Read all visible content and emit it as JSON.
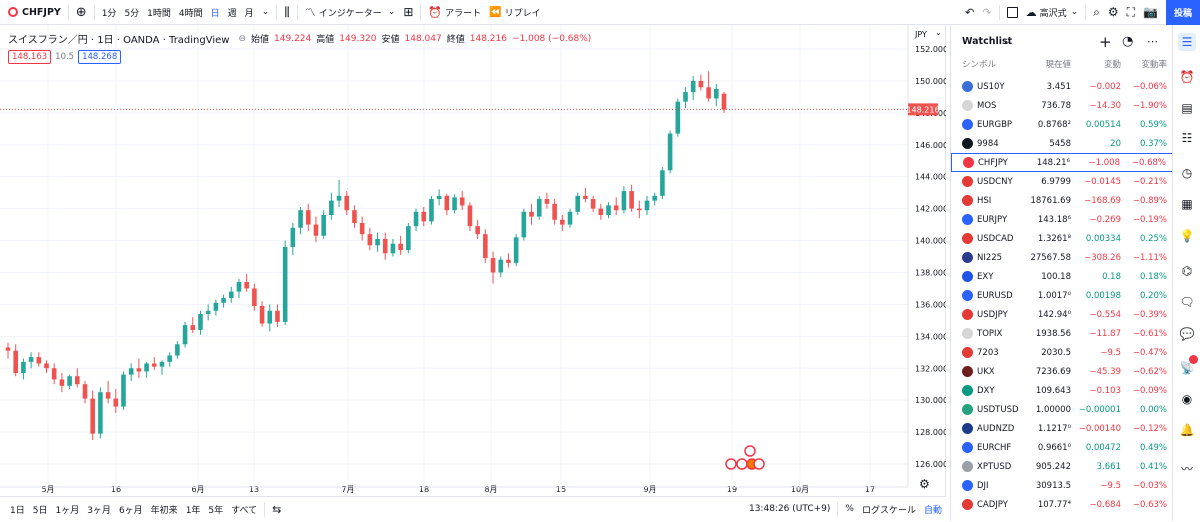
{
  "toolbar": {
    "symbol": "CHFJPY",
    "intervals": [
      "1分",
      "5分",
      "1時間",
      "4時間",
      "日",
      "週",
      "月"
    ],
    "indicators": "インジケーター",
    "alert": "アラート",
    "replay": "リプレイ",
    "autosave": "高沢式",
    "publish": "投稿"
  },
  "legend": {
    "name": "スイスフラン／円 · 1日 · OANDA · TradingView",
    "o_label": "始値",
    "o": "149.224",
    "h_label": "高値",
    "h": "149.320",
    "l_label": "安値",
    "l": "148.047",
    "c_label": "終値",
    "c": "148.216",
    "chg": "−1.008 (−0.68%)",
    "bid": "148.163",
    "spread": "10.5",
    "ask": "148.268"
  },
  "price_axis": {
    "currency": "JPY",
    "ticks": [
      "152.000",
      "150.000",
      "148.000",
      "146.000",
      "144.000",
      "142.000",
      "140.000",
      "138.000",
      "136.000",
      "134.000",
      "132.000",
      "130.000",
      "128.000",
      "126.000"
    ],
    "last": "148.216"
  },
  "time_axis": [
    "5月",
    "16",
    "6月",
    "13",
    "7月",
    "18",
    "8月",
    "15",
    "9月",
    "19",
    "10月",
    "17"
  ],
  "bottom": {
    "ranges": [
      "1日",
      "5日",
      "1ヶ月",
      "3ヶ月",
      "6ヶ月",
      "年初来",
      "1年",
      "5年",
      "すべて"
    ],
    "time": "13:48:26 (UTC+9)",
    "pct": "%",
    "log": "ログスケール",
    "auto": "自動"
  },
  "watchlist": {
    "title": "Watchlist",
    "cols": [
      "シンボル",
      "現在値",
      "変動",
      "変動率"
    ],
    "rows": [
      {
        "sym": "US10Y",
        "last": "3.451",
        "chg": "−0.002",
        "chp": "−0.06%",
        "dir": "dn",
        "color": "#3a6fd8"
      },
      {
        "sym": "MOS",
        "last": "736.78",
        "chg": "−14.30",
        "chp": "−1.90%",
        "dir": "dn",
        "color": "#d6d6d6"
      },
      {
        "sym": "EURGBP",
        "last": "0.8768²",
        "chg": "0.00514",
        "chp": "0.59%",
        "dir": "up",
        "color": "#2962ff"
      },
      {
        "sym": "9984",
        "last": "5458",
        "chg": "20",
        "chp": "0.37%",
        "dir": "up",
        "color": "#131722"
      },
      {
        "sym": "CHFJPY",
        "last": "148.21⁶",
        "chg": "−1.008",
        "chp": "−0.68%",
        "dir": "dn",
        "color": "#f23645",
        "sel": true
      },
      {
        "sym": "USDCNY",
        "last": "6.9799",
        "chg": "−0.0145",
        "chp": "−0.21%",
        "dir": "dn",
        "color": "#e53935"
      },
      {
        "sym": "HSI",
        "last": "18761.69",
        "chg": "−168.69",
        "chp": "−0.89%",
        "dir": "dn",
        "color": "#e53935"
      },
      {
        "sym": "EURJPY",
        "last": "143.18⁶",
        "chg": "−0.269",
        "chp": "−0.19%",
        "dir": "dn",
        "color": "#2962ff"
      },
      {
        "sym": "USDCAD",
        "last": "1.3261⁸",
        "chg": "0.00334",
        "chp": "0.25%",
        "dir": "up",
        "color": "#e53935"
      },
      {
        "sym": "NI225",
        "last": "27567.58",
        "chg": "−308.26",
        "chp": "−1.11%",
        "dir": "dn",
        "color": "#2a3a8c"
      },
      {
        "sym": "EXY",
        "last": "100.18",
        "chg": "0.18",
        "chp": "0.18%",
        "dir": "up",
        "color": "#1e53e5"
      },
      {
        "sym": "EURUSD",
        "last": "1.0017⁰",
        "chg": "0.00198",
        "chp": "0.20%",
        "dir": "up",
        "color": "#2962ff"
      },
      {
        "sym": "USDJPY",
        "last": "142.94⁰",
        "chg": "−0.554",
        "chp": "−0.39%",
        "dir": "dn",
        "color": "#e53935"
      },
      {
        "sym": "TOPIX",
        "last": "1938.56",
        "chg": "−11.87",
        "chp": "−0.61%",
        "dir": "dn",
        "color": "#d6d6d6"
      },
      {
        "sym": "7203",
        "last": "2030.5",
        "chg": "−9.5",
        "chp": "−0.47%",
        "dir": "dn",
        "color": "#e53935"
      },
      {
        "sym": "UKX",
        "last": "7236.69",
        "chg": "−45.39",
        "chp": "−0.62%",
        "dir": "dn",
        "color": "#6d1f1f"
      },
      {
        "sym": "DXY",
        "last": "109.643",
        "chg": "−0.103",
        "chp": "−0.09%",
        "dir": "dn",
        "color": "#089981"
      },
      {
        "sym": "USDTUSD",
        "last": "1.00000",
        "chg": "−0.00001",
        "chp": "0.00%",
        "dir": "up",
        "color": "#26a17b"
      },
      {
        "sym": "AUDNZD",
        "last": "1.1217⁰",
        "chg": "−0.00140",
        "chp": "−0.12%",
        "dir": "dn",
        "color": "#1e3a8a"
      },
      {
        "sym": "EURCHF",
        "last": "0.9661⁰",
        "chg": "0.00472",
        "chp": "0.49%",
        "dir": "up",
        "color": "#2962ff"
      },
      {
        "sym": "XPTUSD",
        "last": "905.242",
        "chg": "3.661",
        "chp": "0.41%",
        "dir": "up",
        "color": "#9aa0a6"
      },
      {
        "sym": "DJI",
        "last": "30913.5",
        "chg": "−9.5",
        "chp": "−0.03%",
        "dir": "dn",
        "color": "#2962ff"
      },
      {
        "sym": "CADJPY",
        "last": "107.77⁴",
        "chg": "−0.684",
        "chp": "−0.63%",
        "dir": "dn",
        "color": "#e53935"
      }
    ]
  },
  "chart_data": {
    "type": "candlestick",
    "ylim": [
      125,
      153
    ],
    "ohlc": [
      [
        133.3,
        133.6,
        132.6,
        133.1
      ],
      [
        133.1,
        133.5,
        131.5,
        131.7
      ],
      [
        131.7,
        132.6,
        131.3,
        132.4
      ],
      [
        132.4,
        133.0,
        132.0,
        132.7
      ],
      [
        132.7,
        133.0,
        132.1,
        132.3
      ],
      [
        132.3,
        132.5,
        131.7,
        132.0
      ],
      [
        132.0,
        132.3,
        131.0,
        131.3
      ],
      [
        131.3,
        131.7,
        130.5,
        130.9
      ],
      [
        130.9,
        131.6,
        130.7,
        131.5
      ],
      [
        131.5,
        132.0,
        130.8,
        131.0
      ],
      [
        131.0,
        131.2,
        129.8,
        130.1
      ],
      [
        130.1,
        130.6,
        127.5,
        127.9
      ],
      [
        127.9,
        130.8,
        127.6,
        130.5
      ],
      [
        130.5,
        131.2,
        129.8,
        130.1
      ],
      [
        130.1,
        130.7,
        129.2,
        129.6
      ],
      [
        129.6,
        131.8,
        129.4,
        131.6
      ],
      [
        131.6,
        132.3,
        131.2,
        132.0
      ],
      [
        132.0,
        132.6,
        131.4,
        131.8
      ],
      [
        131.8,
        132.4,
        131.4,
        132.3
      ],
      [
        132.3,
        132.7,
        131.9,
        132.1
      ],
      [
        132.1,
        132.5,
        131.6,
        132.4
      ],
      [
        132.4,
        133.0,
        132.1,
        132.8
      ],
      [
        132.8,
        133.7,
        132.6,
        133.5
      ],
      [
        133.5,
        134.9,
        133.3,
        134.7
      ],
      [
        134.7,
        135.2,
        134.2,
        134.4
      ],
      [
        134.4,
        135.6,
        134.1,
        135.4
      ],
      [
        135.4,
        136.0,
        135.0,
        135.6
      ],
      [
        135.6,
        136.3,
        135.3,
        136.1
      ],
      [
        136.1,
        136.6,
        135.8,
        136.4
      ],
      [
        136.4,
        137.1,
        136.1,
        136.8
      ],
      [
        136.8,
        137.6,
        136.4,
        137.4
      ],
      [
        137.4,
        137.9,
        136.8,
        137.0
      ],
      [
        137.0,
        137.3,
        135.6,
        135.9
      ],
      [
        135.9,
        136.2,
        134.6,
        134.8
      ],
      [
        134.8,
        136.0,
        134.3,
        135.6
      ],
      [
        135.6,
        136.0,
        134.6,
        134.9
      ],
      [
        134.9,
        140.0,
        134.7,
        139.6
      ],
      [
        139.6,
        141.1,
        139.1,
        140.8
      ],
      [
        140.8,
        142.1,
        140.4,
        141.9
      ],
      [
        141.9,
        142.3,
        140.6,
        141.0
      ],
      [
        141.0,
        141.5,
        139.9,
        140.3
      ],
      [
        140.3,
        141.9,
        140.1,
        141.6
      ],
      [
        141.6,
        143.0,
        141.3,
        142.5
      ],
      [
        142.5,
        143.8,
        142.1,
        142.8
      ],
      [
        142.8,
        143.1,
        141.6,
        141.9
      ],
      [
        141.9,
        142.2,
        140.8,
        141.1
      ],
      [
        141.1,
        141.5,
        140.0,
        140.4
      ],
      [
        140.4,
        140.8,
        139.4,
        139.7
      ],
      [
        139.7,
        140.5,
        139.3,
        140.1
      ],
      [
        140.1,
        140.5,
        138.8,
        139.2
      ],
      [
        139.2,
        140.1,
        139.0,
        139.8
      ],
      [
        139.8,
        140.3,
        139.1,
        139.4
      ],
      [
        139.4,
        141.1,
        139.2,
        140.9
      ],
      [
        140.9,
        142.0,
        140.6,
        141.8
      ],
      [
        141.8,
        142.1,
        140.9,
        141.2
      ],
      [
        141.2,
        142.8,
        141.0,
        142.6
      ],
      [
        142.6,
        143.2,
        142.2,
        142.8
      ],
      [
        142.8,
        142.9,
        141.6,
        141.9
      ],
      [
        141.9,
        142.9,
        141.7,
        142.7
      ],
      [
        142.7,
        143.1,
        141.9,
        142.2
      ],
      [
        142.2,
        142.4,
        140.6,
        140.9
      ],
      [
        140.9,
        141.3,
        140.1,
        140.4
      ],
      [
        140.4,
        140.7,
        138.6,
        138.9
      ],
      [
        138.9,
        139.3,
        137.3,
        138.0
      ],
      [
        138.0,
        139.0,
        137.7,
        138.8
      ],
      [
        138.8,
        139.2,
        138.3,
        138.6
      ],
      [
        138.6,
        140.4,
        138.4,
        140.2
      ],
      [
        140.2,
        142.0,
        140.0,
        141.8
      ],
      [
        141.8,
        142.3,
        141.0,
        141.5
      ],
      [
        141.5,
        142.8,
        141.3,
        142.6
      ],
      [
        142.6,
        143.0,
        142.0,
        142.3
      ],
      [
        142.3,
        142.6,
        141.0,
        141.3
      ],
      [
        141.3,
        141.6,
        140.6,
        141.0
      ],
      [
        141.0,
        142.0,
        140.8,
        141.8
      ],
      [
        141.8,
        143.0,
        141.6,
        142.8
      ],
      [
        142.8,
        143.3,
        142.4,
        142.6
      ],
      [
        142.6,
        142.8,
        141.8,
        142.0
      ],
      [
        142.0,
        142.3,
        141.3,
        141.6
      ],
      [
        141.6,
        142.4,
        141.4,
        142.2
      ],
      [
        142.2,
        142.7,
        141.6,
        141.9
      ],
      [
        141.9,
        143.4,
        141.7,
        143.1
      ],
      [
        143.1,
        143.5,
        141.8,
        142.0
      ],
      [
        142.0,
        142.5,
        141.4,
        141.9
      ],
      [
        141.9,
        142.8,
        141.6,
        142.5
      ],
      [
        142.5,
        143.0,
        142.2,
        142.8
      ],
      [
        142.8,
        144.6,
        142.6,
        144.4
      ],
      [
        144.4,
        146.9,
        144.2,
        146.7
      ],
      [
        146.7,
        148.9,
        146.5,
        148.7
      ],
      [
        148.7,
        149.6,
        148.3,
        149.3
      ],
      [
        149.3,
        150.3,
        148.8,
        150.0
      ],
      [
        150.0,
        150.4,
        149.4,
        149.6
      ],
      [
        149.6,
        150.6,
        148.7,
        148.9
      ],
      [
        148.9,
        149.8,
        148.4,
        149.5
      ],
      [
        149.2,
        149.3,
        148.0,
        148.2
      ]
    ]
  }
}
